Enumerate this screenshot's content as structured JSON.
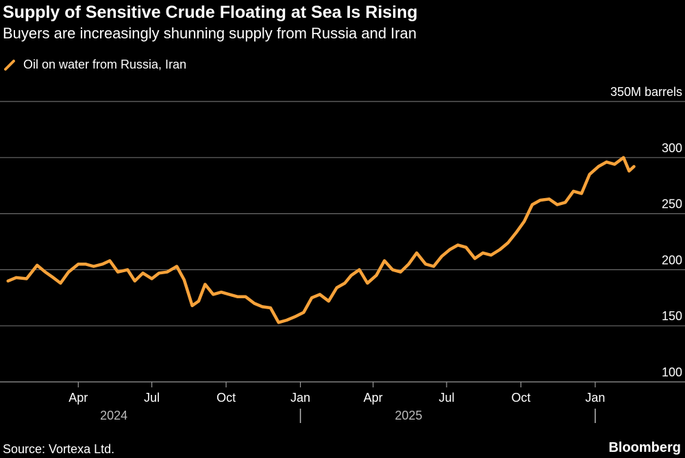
{
  "title": "Supply of Sensitive Crude Floating at Sea Is Rising",
  "subtitle": "Buyers are increasingly shunning supply from Russia and Iran",
  "legend": {
    "label": "Oil on water from Russia, Iran"
  },
  "source": "Source: Vortexa Ltd.",
  "brand": "Bloomberg",
  "colors": {
    "series": "#f7a23a",
    "grid": "#6b6b6b",
    "background": "#000000"
  },
  "chart_data": {
    "type": "line",
    "title": "Supply of Sensitive Crude Floating at Sea Is Rising",
    "ylabel": "350M barrels",
    "ylim": [
      100,
      350
    ],
    "y_ticks": [
      {
        "value": 350,
        "label": "350M barrels"
      },
      {
        "value": 300,
        "label": "300"
      },
      {
        "value": 250,
        "label": "250"
      },
      {
        "value": 200,
        "label": "200"
      },
      {
        "value": 150,
        "label": "150"
      },
      {
        "value": 100,
        "label": "100"
      }
    ],
    "x_ticks": [
      {
        "date": "2024-04-01",
        "label": "Apr"
      },
      {
        "date": "2024-07-01",
        "label": "Jul"
      },
      {
        "date": "2024-10-01",
        "label": "Oct"
      },
      {
        "date": "2025-01-01",
        "label": "Jan"
      },
      {
        "date": "2025-04-01",
        "label": "Apr"
      },
      {
        "date": "2025-07-01",
        "label": "Jul"
      },
      {
        "date": "2025-10-01",
        "label": "Oct"
      },
      {
        "date": "2026-01-01",
        "label": "Jan"
      }
    ],
    "year_labels": [
      {
        "date": "2024-05-15",
        "label": "2024"
      },
      {
        "date": "2025-05-15",
        "label": "2025"
      }
    ],
    "year_dividers": [
      "2025-01-01",
      "2026-01-01"
    ],
    "xlim": [
      "2024-01-01",
      "2026-03-15"
    ],
    "grid": true,
    "legend_position": "top-left",
    "series": [
      {
        "name": "Oil on water from Russia, Iran",
        "color": "#f7a23a",
        "x": [
          "2024-01-05",
          "2024-01-15",
          "2024-01-28",
          "2024-02-10",
          "2024-02-20",
          "2024-03-01",
          "2024-03-10",
          "2024-03-20",
          "2024-04-01",
          "2024-04-10",
          "2024-04-20",
          "2024-05-01",
          "2024-05-10",
          "2024-05-20",
          "2024-06-01",
          "2024-06-10",
          "2024-06-20",
          "2024-07-01",
          "2024-07-10",
          "2024-07-20",
          "2024-08-01",
          "2024-08-10",
          "2024-08-20",
          "2024-08-28",
          "2024-09-05",
          "2024-09-15",
          "2024-09-25",
          "2024-10-05",
          "2024-10-15",
          "2024-10-25",
          "2024-11-05",
          "2024-11-15",
          "2024-11-25",
          "2024-12-05",
          "2024-12-15",
          "2024-12-25",
          "2025-01-05",
          "2025-01-15",
          "2025-01-25",
          "2025-02-05",
          "2025-02-15",
          "2025-02-25",
          "2025-03-05",
          "2025-03-15",
          "2025-03-25",
          "2025-04-05",
          "2025-04-15",
          "2025-04-25",
          "2025-05-05",
          "2025-05-15",
          "2025-05-25",
          "2025-06-05",
          "2025-06-15",
          "2025-06-25",
          "2025-07-05",
          "2025-07-15",
          "2025-07-25",
          "2025-08-05",
          "2025-08-15",
          "2025-08-25",
          "2025-09-05",
          "2025-09-15",
          "2025-09-25",
          "2025-10-05",
          "2025-10-15",
          "2025-10-25",
          "2025-11-05",
          "2025-11-15",
          "2025-11-25",
          "2025-12-05",
          "2025-12-15",
          "2025-12-25",
          "2026-01-05",
          "2026-01-15",
          "2026-01-25",
          "2026-02-05",
          "2026-02-12",
          "2026-02-18"
        ],
        "values": [
          190,
          193,
          192,
          204,
          198,
          193,
          188,
          198,
          205,
          205,
          203,
          205,
          208,
          198,
          200,
          190,
          197,
          192,
          197,
          198,
          203,
          191,
          168,
          172,
          187,
          178,
          180,
          178,
          176,
          176,
          170,
          167,
          166,
          153,
          155,
          158,
          162,
          175,
          178,
          172,
          184,
          188,
          195,
          200,
          188,
          195,
          208,
          200,
          198,
          205,
          215,
          205,
          203,
          212,
          218,
          222,
          220,
          210,
          215,
          213,
          218,
          224,
          233,
          243,
          258,
          262,
          263,
          258,
          260,
          270,
          268,
          285,
          292,
          296,
          294,
          300,
          288,
          292
        ]
      }
    ]
  }
}
